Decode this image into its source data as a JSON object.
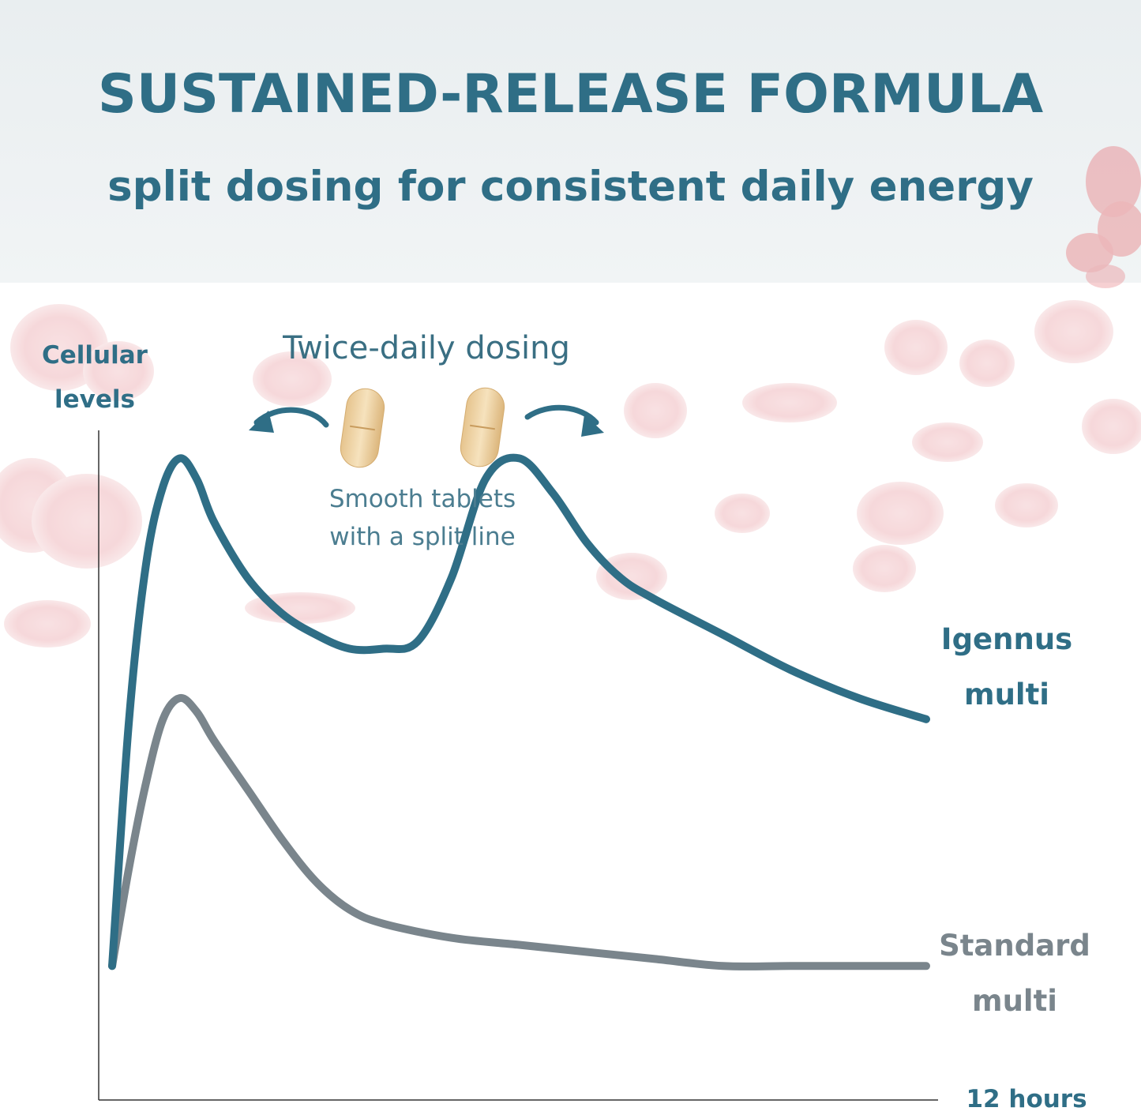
{
  "header": {
    "title": "SUSTAINED-RELEASE FORMULA",
    "subtitle": "split dosing for consistent daily energy"
  },
  "annotations": {
    "dosing": "Twice-daily dosing",
    "tablets_line1": "Smooth tablets",
    "tablets_line2": "with a split line"
  },
  "chart_data": {
    "type": "line",
    "title": "",
    "ylabel_line1": "Cellular",
    "ylabel_line2": "levels",
    "xlabel": "12 hours",
    "xlim": [
      0,
      12
    ],
    "ylim": [
      0,
      100
    ],
    "grid": false,
    "series": [
      {
        "name_line1": "Igennus",
        "name_line2": "multi",
        "color": "#2f6e86",
        "x": [
          0,
          0.25,
          0.5,
          0.75,
          1.0,
          1.25,
          1.5,
          2.0,
          2.5,
          3.0,
          3.5,
          4.0,
          4.5,
          5.0,
          5.5,
          6.0,
          6.5,
          7.0,
          7.5,
          8.0,
          9.0,
          10.0,
          11.0,
          12.0
        ],
        "y": [
          19,
          54,
          76,
          87,
          91,
          88,
          82,
          74,
          69,
          66,
          64,
          64,
          65,
          74,
          88,
          91,
          86,
          79,
          74,
          71,
          66,
          61,
          57,
          54
        ]
      },
      {
        "name_line1": "Standard",
        "name_line2": "multi",
        "color": "#7a858c",
        "x": [
          0,
          0.25,
          0.5,
          0.75,
          1.0,
          1.25,
          1.5,
          2.0,
          2.5,
          3.0,
          3.5,
          4.0,
          5.0,
          6.0,
          7.0,
          8.0,
          9.0,
          10.0,
          11.0,
          12.0
        ],
        "y": [
          19,
          33,
          45,
          54,
          57,
          55,
          51,
          44,
          37,
          31,
          27,
          25,
          23,
          22,
          21,
          20,
          19,
          19,
          19,
          19
        ]
      }
    ]
  }
}
